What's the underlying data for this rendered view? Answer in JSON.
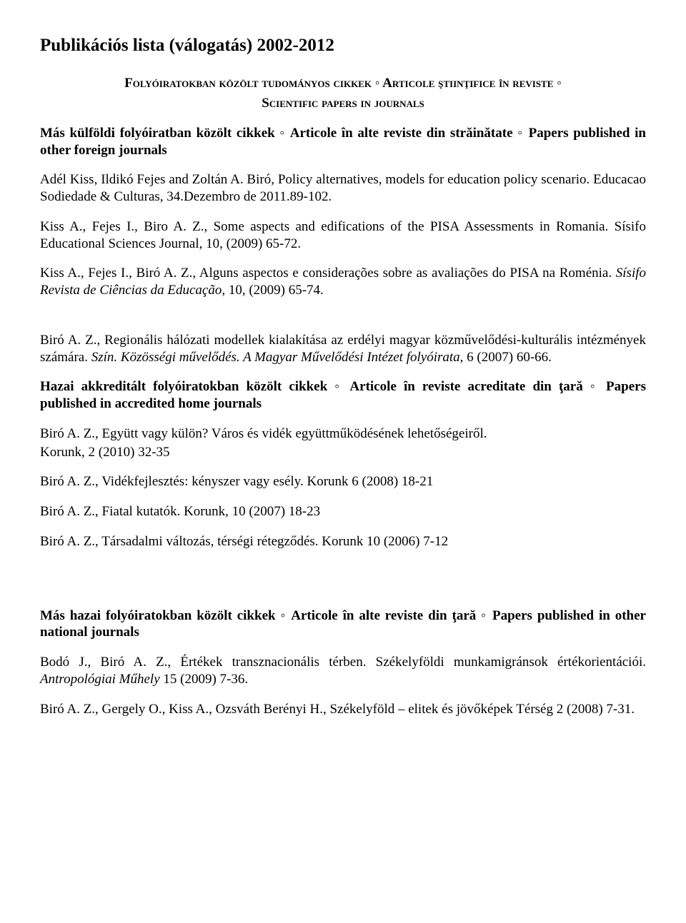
{
  "title": "Publikációs lista (válogatás)  2002-2012",
  "heading1_line1_html": "F<span class='smallcaps'>olyóiratokban közölt tudományos cikkek</span> <b>◦</b> A<span class='smallcaps'>rticole ştiinţifice în reviste</span> <b>◦</b>",
  "heading1_line2_html": "S<span class='smallcaps'>cientific papers in journals</span>",
  "subheading1": "Más külföldi folyóiratban közölt cikkek ◦ Articole în alte reviste din străinătate ◦ Papers published in other foreign journals",
  "p1": "Adél Kiss, Ildikó Fejes and Zoltán A. Biró, Policy alternatives, models for education policy scenario.  Educacao Sodiedade & Culturas, 34.Dezembro de 2011.89-102.",
  "p2": "Kiss A., Fejes I., Biro A. Z., Some aspects and edifications of the PISA Assessments in Romania. Sísifo Educational Sciences Journal, 10, (2009) 65-72.",
  "p3_html": "Kiss A., Fejes I., Biró A. Z., Alguns aspectos e considerações sobre as avaliações do PISA na Roménia. <span class='italic'>Sísifo Revista de Ciências da Educação</span>, 10, (2009)  65-74.",
  "p4_html": "Biró A. Z., Regionális hálózati modellek kialakítása az erdélyi magyar közművelődési-kulturális intézmények számára. <span class='italic'>Szín. Közösségi művelődés. A Magyar Művelődési Intézet folyóirata</span>, 6 (2007)  60-66.",
  "subheading2": "Hazai akkreditált folyóiratokban közölt cikkek ◦ Articole în reviste acreditate din ţară ◦ Papers published in accredited home journals",
  "p5a": "Biró A. Z.,  Együtt vagy külön?  Város és vidék együttműködésének lehetőségeiről.",
  "p5b": " Korunk, 2 (2010) 32-35",
  "p6": "Biró A. Z.,   Vidékfejlesztés: kényszer vagy esély. Korunk  6 (2008) 18-21",
  "p7": "Biró A. Z.,  Fiatal kutatók. Korunk, 10 (2007) 18-23",
  "p8": "Biró A. Z.,  Társadalmi változás, térségi rétegződés. Korunk  10 (2006)  7-12",
  "subheading3": "Más hazai folyóiratokban közölt cikkek ◦ Articole în alte reviste din ţară ◦ Papers published in other national journals",
  "p9_html": "Bodó J., Biró A. Z.,  Értékek transznacionális térben. Székelyföldi munkamigránsok értékorientációi. <span class='italic'>Antropológiai Műhely</span> 15 (2009) 7-36.",
  "p10": "Biró A. Z., Gergely O., Kiss A., Ozsváth Berényi H., Székelyföld – elitek és jövőképek Térség 2 (2008) 7-31."
}
